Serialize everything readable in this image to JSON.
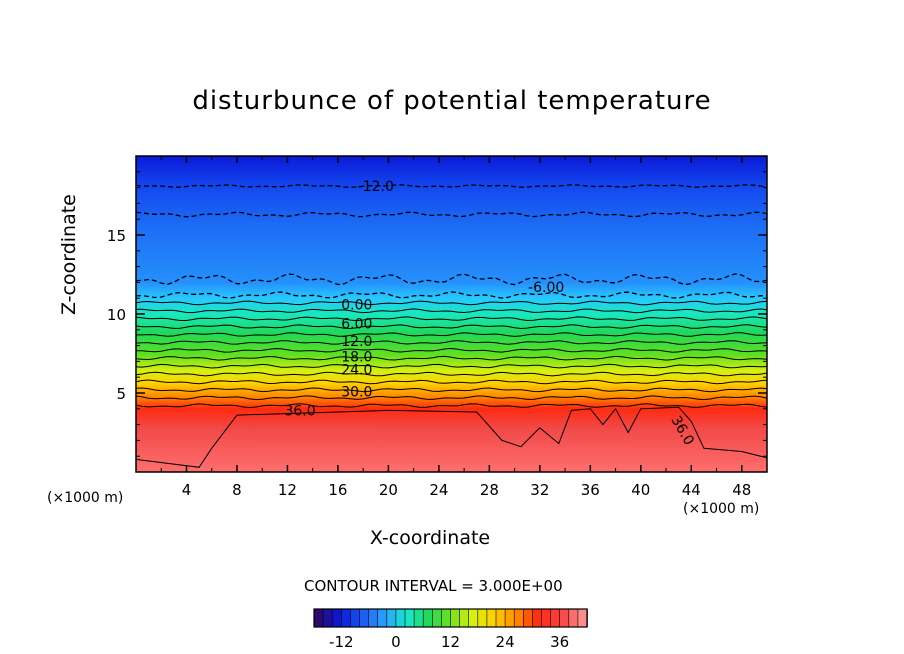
{
  "chart_data": {
    "type": "contour",
    "title": "disturbunce of potential temperature",
    "xlabel": "X-coordinate",
    "ylabel": "Z-coordinate",
    "x_unit_left": "(×1000 m)",
    "x_unit_right": "(×1000 m)",
    "x_range": [
      0,
      50
    ],
    "y_range": [
      0,
      20
    ],
    "x_ticks": [
      "4",
      "8",
      "12",
      "16",
      "20",
      "24",
      "28",
      "32",
      "36",
      "40",
      "44",
      "48"
    ],
    "y_ticks": [
      "5",
      "10",
      "15"
    ],
    "contour_interval_text": "CONTOUR INTERVAL = 3.000E+00",
    "contour_labels": [
      "-12.0",
      "-6.00",
      "0.00",
      "6.00",
      "12.0",
      "18.0",
      "24.0",
      "30.0",
      "36.0",
      "36.0"
    ],
    "colorbar": {
      "range": [
        -18,
        42
      ],
      "tick_labels": [
        "-12",
        "0",
        "12",
        "24",
        "36"
      ],
      "colors": [
        "#2a0a6e",
        "#0a1ad8",
        "#1a5cf0",
        "#2aa0ff",
        "#18e8d0",
        "#20d858",
        "#70e020",
        "#d8f010",
        "#ffd000",
        "#ff8a00",
        "#ff2a10",
        "#f84040",
        "#ff8c8c"
      ]
    }
  }
}
